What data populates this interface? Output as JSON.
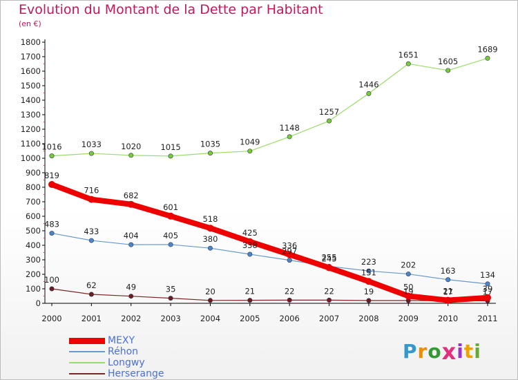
{
  "title": "Evolution du Montant de la Dette par Habitant",
  "subtitle": "(en €)",
  "logo": {
    "text": "Proxiti",
    "letter_colors": [
      "#3399cc",
      "#f08c00",
      "#339933",
      "#e0307f",
      "#9933cc",
      "#f0a000",
      "#66aa33"
    ]
  },
  "chart_data": {
    "type": "line",
    "title": "Evolution du Montant de la Dette par Habitant",
    "ylabel": "(en €)",
    "xlabel": "",
    "x": [
      "2000",
      "2001",
      "2002",
      "2003",
      "2004",
      "2005",
      "2006",
      "2007",
      "2008",
      "2009",
      "2010",
      "2011"
    ],
    "ylim": [
      0,
      1800
    ],
    "yticks": [
      "0",
      "100",
      "200",
      "300",
      "400",
      "500",
      "600",
      "700",
      "800",
      "900",
      "1000",
      "1100",
      "1200",
      "1300",
      "1400",
      "1500",
      "1600",
      "1700",
      "1800"
    ],
    "grid": false,
    "legend": "bottom-left",
    "series": [
      {
        "name": "Longwy",
        "color": "#99dd66",
        "marker": "#77cc33",
        "width": 1.2,
        "values": [
          1016,
          1033,
          1020,
          1015,
          1035,
          1049,
          1148,
          1257,
          1446,
          1651,
          1605,
          1689
        ],
        "labels": [
          "1016",
          "1033",
          "1020",
          "1015",
          "1035",
          "1049",
          "1148",
          "1257",
          "1446",
          "1651",
          "1605",
          "1689"
        ]
      },
      {
        "name": "Réhon",
        "color": "#6699cc",
        "marker": "#4a86c8",
        "width": 1.2,
        "values": [
          483,
          433,
          404,
          405,
          380,
          338,
          297,
          255,
          223,
          202,
          163,
          134
        ],
        "labels": [
          "483",
          "433",
          "404",
          "405",
          "380",
          "338",
          "297",
          "255",
          "223",
          "202",
          "163",
          "134"
        ]
      },
      {
        "name": "Herserange",
        "color": "#7a2626",
        "marker": "#6b1e1e",
        "width": 1.2,
        "values": [
          100,
          62,
          49,
          35,
          20,
          21,
          22,
          22,
          19,
          19,
          17,
          17
        ],
        "labels": [
          "100",
          "62",
          "49",
          "35",
          "20",
          "21",
          "22",
          "22",
          "19",
          "19",
          "17",
          "17"
        ]
      },
      {
        "name": "MEXY",
        "color": "#ee0000",
        "marker": "#ee0000",
        "width": 8,
        "values": [
          819,
          716,
          682,
          601,
          518,
          425,
          336,
          245,
          151,
          50,
          21,
          39
        ],
        "labels": [
          "819",
          "716",
          "682",
          "601",
          "518",
          "425",
          "336",
          "245",
          "151",
          "50",
          "21",
          "39"
        ]
      }
    ],
    "legend_order": [
      "MEXY",
      "Réhon",
      "Longwy",
      "Herserange"
    ]
  }
}
